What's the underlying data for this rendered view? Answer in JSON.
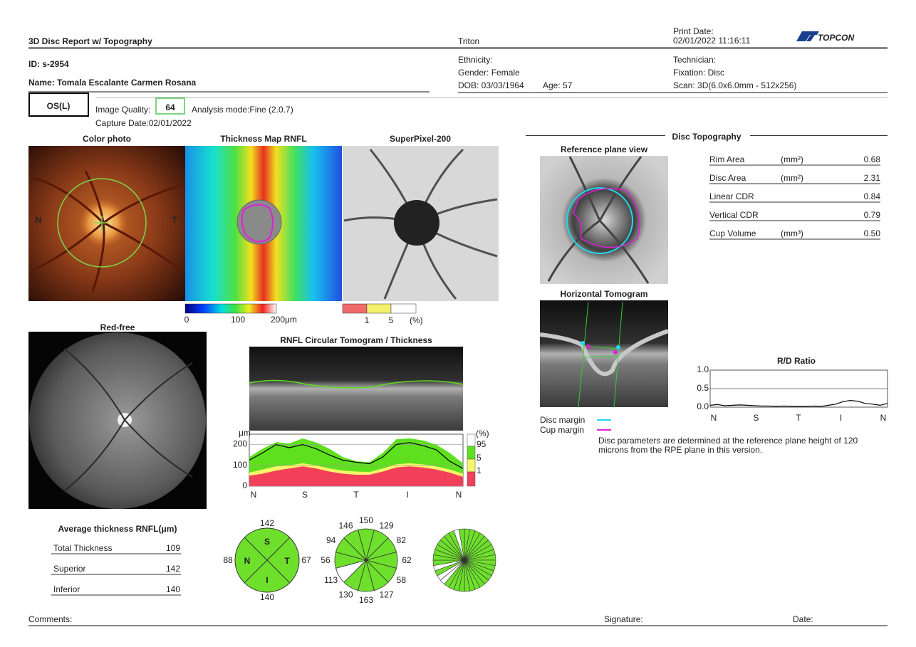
{
  "header": {
    "title": "3D Disc Report w/ Topography",
    "device": "Triton",
    "print_date_label": "Print Date:",
    "print_date": "02/01/2022 11:16:11",
    "logo": "TOPCON"
  },
  "patient": {
    "id": "ID: s-2954",
    "name": "Name: Tomala Escalante Carmen Rosana",
    "ethnicity": "Ethnicity:",
    "gender": "Gender: Female",
    "dob": "DOB: 03/03/1964",
    "age": "Age: 57",
    "technician": "Technician:",
    "fixation": "Fixation: Disc",
    "scan": "Scan: 3D(6.0x6.0mm - 512x256)"
  },
  "exam": {
    "eye": "OS(L)",
    "image_quality_label": "Image Quality:",
    "image_quality": "64",
    "analysis_mode": "Analysis mode:Fine (2.0.7)",
    "capture_date": "Capture Date:02/01/2022"
  },
  "panels": {
    "color_photo": "Color photo",
    "color_photo_n": "N",
    "color_photo_t": "T",
    "thickness_map": "Thickness Map RNFL",
    "superpixel": "SuperPixel-200",
    "red_free": "Red-free",
    "circular": "RNFL Circular Tomogram / Thickness",
    "reference_plane": "Reference plane view",
    "horizontal": "Horizontal Tomogram",
    "topography": "Disc Topography"
  },
  "colorbar": {
    "labels": [
      "0",
      "100",
      "200μm"
    ]
  },
  "superpixel_legend": {
    "labels": [
      "1",
      "5",
      "(%)"
    ]
  },
  "thickness_chart": {
    "type": "line",
    "y_unit": "μm",
    "ylim": [
      0,
      250
    ],
    "yticks": [
      0,
      100,
      200
    ],
    "x_labels": [
      "N",
      "S",
      "T",
      "I",
      "N"
    ],
    "values": [
      125,
      160,
      200,
      185,
      200,
      180,
      150,
      125,
      115,
      108,
      140,
      200,
      210,
      195,
      175,
      120,
      85
    ],
    "p95": [
      140,
      180,
      212,
      205,
      230,
      210,
      180,
      140,
      120,
      115,
      160,
      225,
      230,
      220,
      200,
      160,
      110
    ],
    "p5": [
      65,
      80,
      95,
      100,
      110,
      100,
      85,
      75,
      70,
      68,
      85,
      105,
      110,
      105,
      95,
      80,
      60
    ],
    "p1": [
      50,
      60,
      75,
      85,
      95,
      85,
      70,
      60,
      55,
      55,
      70,
      90,
      95,
      90,
      80,
      65,
      45
    ],
    "line_color": "#000000",
    "p95_color": "#5ee01e",
    "p5_color": "#f7f56a",
    "p1_color": "#f2405a",
    "percentile_legend": {
      "title": "(%)",
      "labels": [
        "95",
        "5",
        "1"
      ]
    }
  },
  "average_thickness": {
    "title": "Average thickness RNFL(μm)",
    "rows": [
      {
        "label": "Total Thickness",
        "value": "109"
      },
      {
        "label": "Superior",
        "value": "142"
      },
      {
        "label": "Inferior",
        "value": "140"
      }
    ]
  },
  "quadrants": {
    "letters": [
      "S",
      "T",
      "I",
      "N"
    ],
    "values": [
      "142",
      "67",
      "140",
      "88"
    ],
    "color": "#6ee02c"
  },
  "clock_hours": {
    "values": [
      "150",
      "129",
      "82",
      "62",
      "58",
      "127",
      "163",
      "130",
      "113",
      "56",
      "94",
      "146"
    ],
    "colors": [
      "#6ee02c",
      "#6ee02c",
      "#6ee02c",
      "#6ee02c",
      "#6ee02c",
      "#6ee02c",
      "#6ee02c",
      "#6ee02c",
      "#ffffff",
      "#6ee02c",
      "#6ee02c",
      "#6ee02c"
    ]
  },
  "disc_parameters": {
    "rows": [
      {
        "label": "Rim Area",
        "unit": "(mm²)",
        "value": "0.68"
      },
      {
        "label": "Disc Area",
        "unit": "(mm²)",
        "value": "2.31"
      },
      {
        "label": "Linear CDR",
        "value": "0.84"
      },
      {
        "label": "Vertical CDR",
        "value": "0.79"
      },
      {
        "label": "Cup Volume",
        "unit": "(mm³)",
        "value": "0.50"
      }
    ]
  },
  "margins": {
    "disc": "Disc margin",
    "cup": "Cup margin",
    "disc_color": "#22d8f0",
    "cup_color": "#e020d8"
  },
  "note": [
    "Disc parameters are determined at the reference plane height of 120",
    "microns from the RPE plane in this version."
  ],
  "rd_ratio": {
    "type": "line",
    "title": "R/D Ratio",
    "ylim": [
      0,
      1
    ],
    "yticks": [
      {
        "value": 0,
        "label": "0.0"
      },
      {
        "value": 0.5,
        "label": "0.5"
      },
      {
        "value": 1,
        "label": "1.0"
      }
    ],
    "x_labels": [
      "N",
      "S",
      "T",
      "I",
      "N"
    ],
    "values": [
      0.05,
      0.07,
      0.04,
      0.05,
      0.06,
      0.05,
      0.04,
      0.03,
      0.03,
      0.02,
      0.03,
      0.02,
      0.02,
      0.02,
      0.03,
      0.02,
      0.05,
      0.08,
      0.15,
      0.18,
      0.16,
      0.1,
      0.08,
      0.05,
      0.1
    ]
  },
  "footer": {
    "comments": "Comments:",
    "signature": "Signature:",
    "date": "Date:"
  }
}
